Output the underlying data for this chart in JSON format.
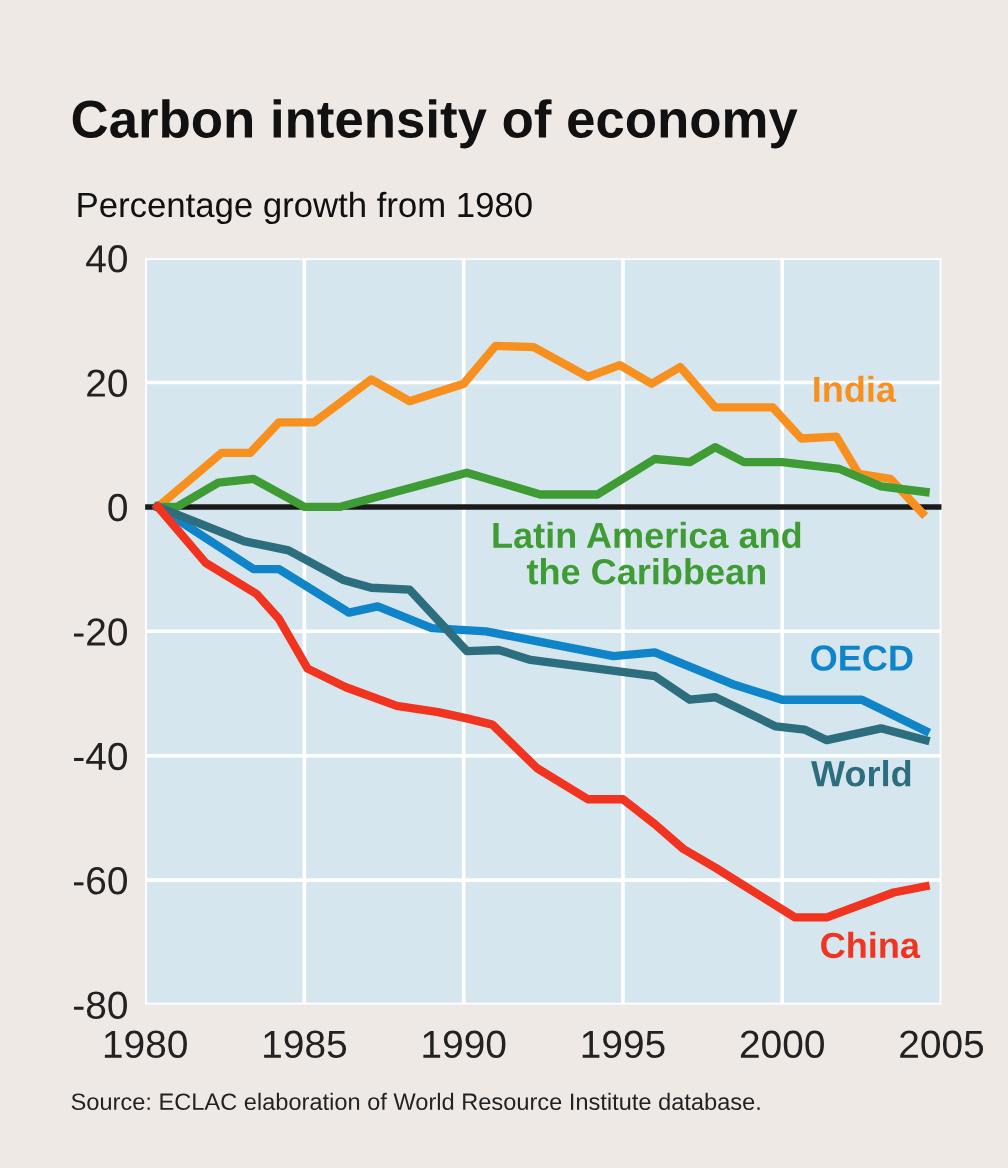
{
  "chart_data": {
    "type": "line",
    "title": "Carbon intensity of economy",
    "ylabel": "Percentage growth from 1980",
    "annotations": [
      "Source: ECLAC elaboration of World Resource Institute database."
    ],
    "xlim": [
      1980,
      2005
    ],
    "xticks": [
      1980,
      1985,
      1990,
      1995,
      2000,
      2005
    ],
    "ylim": [
      -80,
      40
    ],
    "yticks": [
      -80,
      -60,
      -40,
      -20,
      0,
      20,
      40
    ],
    "grid": true,
    "legend": false,
    "marker": "none",
    "line_style": "solid",
    "ref_lines": [
      {
        "axis": "y",
        "value": 0,
        "color": "#1a1a1a"
      }
    ],
    "series": [
      {
        "name": "India",
        "color": "#f7901e",
        "x": [
          1980.4,
          1982.4,
          1983.3,
          1984.2,
          1985.3,
          1987.1,
          1988.3,
          1990.0,
          1991.0,
          1992.2,
          1993.9,
          1994.9,
          1995.9,
          1996.8,
          1997.9,
          1999.7,
          2000.6,
          2001.7,
          2002.4,
          2003.4,
          2004.4
        ],
        "values": [
          0,
          8.7,
          8.7,
          13.6,
          13.6,
          20.5,
          17,
          19.8,
          25.9,
          25.7,
          20.9,
          22.8,
          19.8,
          22.5,
          16,
          16,
          11,
          11.3,
          5.3,
          4.5,
          -1
        ]
      },
      {
        "name": "Latin America and\nthe Caribbean",
        "color": "#3f9c35",
        "x": [
          1980.4,
          1981.0,
          1982.3,
          1983.4,
          1985.0,
          1986.1,
          1990.1,
          1992.4,
          1994.2,
          1996.0,
          1997.1,
          1997.9,
          1998.8,
          2000.0,
          2001.8,
          2003.1,
          2004.5
        ],
        "values": [
          0,
          0,
          3.9,
          4.5,
          0,
          0,
          5.5,
          2,
          2,
          7.7,
          7.2,
          9.6,
          7.2,
          7.2,
          6.1,
          3.3,
          2.4
        ]
      },
      {
        "name": "OECD",
        "color": "#0f84c8",
        "x": [
          1980.4,
          1983.4,
          1984.2,
          1986.4,
          1987.3,
          1989.0,
          1990.7,
          1992.4,
          1994.7,
          1996.0,
          1998.5,
          2000.0,
          2002.5,
          2004.5
        ],
        "values": [
          0,
          -10,
          -10,
          -17,
          -16,
          -19.5,
          -20,
          -21.7,
          -24,
          -23.4,
          -28.6,
          -31,
          -31,
          -36
        ]
      },
      {
        "name": "World",
        "color": "#2c6e7e",
        "x": [
          1980.4,
          1983.1,
          1984.5,
          1986.2,
          1987.1,
          1988.3,
          1990.1,
          1991.1,
          1992.1,
          1996.0,
          1997.1,
          1997.9,
          1999.8,
          2000.7,
          2001.4,
          2003.1,
          2004.5
        ],
        "values": [
          0,
          -5.5,
          -7,
          -11.7,
          -13,
          -13.3,
          -23.2,
          -23,
          -24.6,
          -27.2,
          -31,
          -30.6,
          -35.3,
          -35.8,
          -37.5,
          -35.6,
          -37.5
        ]
      },
      {
        "name": "China",
        "color": "#f0341f",
        "x": [
          1980.4,
          1981.9,
          1983.5,
          1984.2,
          1985.1,
          1986.3,
          1987.9,
          1989.2,
          1990.1,
          1990.9,
          1992.3,
          1993.9,
          1995.0,
          1996.0,
          1996.9,
          1997.9,
          2000.4,
          2001.4,
          2003.5,
          2004.5
        ],
        "values": [
          0,
          -9,
          -14,
          -18,
          -26,
          -29,
          -32,
          -33,
          -34,
          -35,
          -42,
          -47,
          -47,
          -51,
          -55,
          -58,
          -66,
          -66,
          -62,
          -61
        ]
      }
    ]
  }
}
